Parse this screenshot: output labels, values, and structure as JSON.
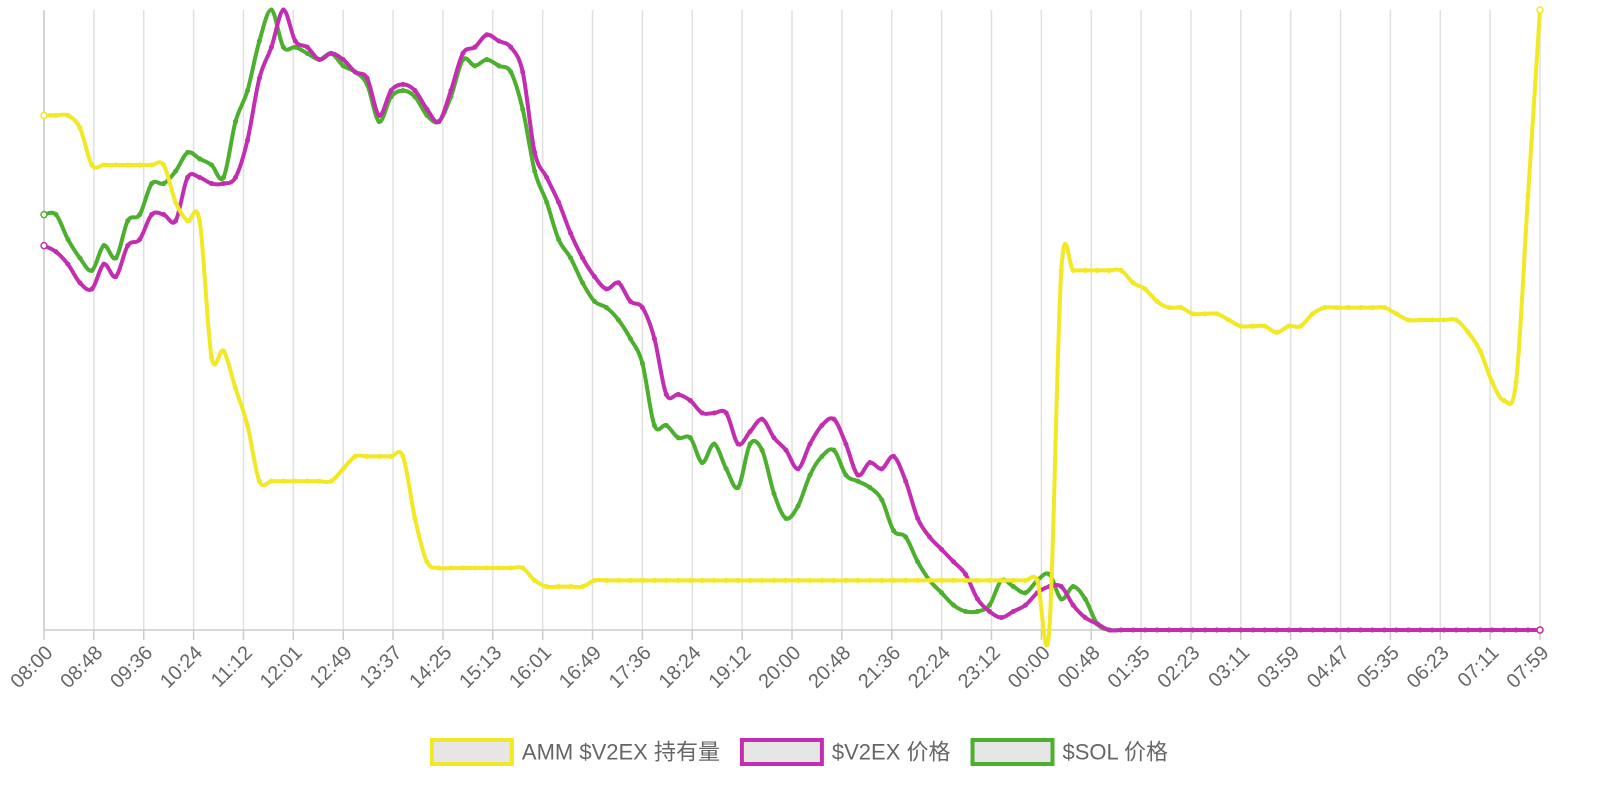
{
  "chart_data": {
    "type": "line",
    "title": "",
    "xlabel": "",
    "ylabel": "",
    "x_tick_labels": [
      "08:00",
      "08:48",
      "09:36",
      "10:24",
      "11:12",
      "12:01",
      "12:49",
      "13:37",
      "14:25",
      "15:13",
      "16:01",
      "16:49",
      "17:36",
      "18:24",
      "19:12",
      "20:00",
      "20:48",
      "21:36",
      "22:24",
      "23:12",
      "00:00",
      "00:48",
      "01:35",
      "02:23",
      "03:11",
      "03:59",
      "04:47",
      "05:35",
      "06:23",
      "07:11",
      "07:59"
    ],
    "y_axis_visible": false,
    "ylim": [
      0,
      100
    ],
    "grid": {
      "vertical": true,
      "horizontal": false
    },
    "legend_position": "bottom",
    "note": "Y axis shows no tick labels; series values are estimated on a normalized 0-100 scale (0 = bottom of plot, 100 = top).",
    "series": [
      {
        "name": "AMM $V2EX 持有量",
        "color": "#f2e824",
        "values": [
          83,
          83,
          83,
          81,
          75,
          75,
          75,
          75,
          75,
          75,
          75,
          69,
          66,
          66,
          44,
          45,
          39,
          33,
          24,
          24,
          24,
          24,
          24,
          24,
          24,
          26,
          28,
          28,
          28,
          28,
          28,
          18,
          11,
          10,
          10,
          10,
          10,
          10,
          10,
          10,
          10,
          8,
          7,
          7,
          7,
          7,
          8,
          8,
          8,
          8,
          8,
          8,
          8,
          8,
          8,
          8,
          8,
          8,
          8,
          8,
          8,
          8,
          8,
          8,
          8,
          8,
          8,
          8,
          8,
          8,
          8,
          8,
          8,
          8,
          8,
          8,
          8,
          8,
          8,
          8,
          8,
          8,
          8,
          8,
          0,
          58,
          58,
          58,
          58,
          58,
          58,
          56,
          55,
          53,
          52,
          52,
          51,
          51,
          51,
          50,
          49,
          49,
          49,
          48,
          49,
          49,
          51,
          52,
          52,
          52,
          52,
          52,
          52,
          51,
          50,
          50,
          50,
          50,
          50,
          48,
          45,
          40,
          37,
          40,
          70,
          100
        ]
      },
      {
        "name": "$V2EX 价格",
        "color": "#c32eb1",
        "values": [
          62,
          61,
          59,
          56,
          55,
          59,
          57,
          62,
          63,
          67,
          67,
          66,
          73,
          73,
          72,
          72,
          73,
          79,
          89,
          94,
          100,
          95,
          94,
          92,
          93,
          92,
          90,
          89,
          83,
          87,
          88,
          87,
          84,
          82,
          87,
          93,
          94,
          96,
          95,
          94,
          90,
          77,
          73,
          69,
          64,
          60,
          57,
          55,
          56,
          53,
          52,
          47,
          38,
          38,
          37,
          35,
          35,
          35,
          30,
          32,
          34,
          31,
          29,
          26,
          30,
          33,
          34,
          30,
          25,
          27,
          26,
          28,
          24,
          18,
          15,
          13,
          11,
          9,
          5,
          3,
          2,
          3,
          4,
          6,
          7,
          7,
          4,
          2,
          1,
          0,
          0,
          0,
          0,
          0,
          0,
          0,
          0,
          0,
          0,
          0,
          0,
          0,
          0,
          0,
          0,
          0,
          0,
          0,
          0,
          0,
          0,
          0,
          0,
          0,
          0,
          0,
          0,
          0,
          0,
          0,
          0,
          0,
          0,
          0,
          0,
          0
        ]
      },
      {
        "name": "$SOL 价格",
        "color": "#4caf2e",
        "values": [
          67,
          67,
          63,
          60,
          58,
          62,
          60,
          66,
          67,
          72,
          72,
          74,
          77,
          76,
          75,
          73,
          82,
          87,
          95,
          100,
          94,
          94,
          93,
          92,
          93,
          91,
          90,
          88,
          82,
          86,
          87,
          86,
          83,
          82,
          86,
          92,
          91,
          92,
          91,
          90,
          84,
          74,
          69,
          63,
          60,
          56,
          53,
          52,
          50,
          47,
          43,
          33,
          33,
          31,
          31,
          27,
          30,
          26,
          23,
          30,
          29,
          22,
          18,
          20,
          25,
          28,
          29,
          25,
          24,
          23,
          21,
          16,
          15,
          11,
          8,
          6,
          4,
          3,
          3,
          4,
          8,
          7,
          6,
          8,
          9,
          5,
          7,
          5,
          1,
          0,
          0,
          0,
          0,
          0,
          0,
          0,
          0,
          0,
          0,
          0,
          0,
          0,
          0,
          0,
          0,
          0,
          0,
          0,
          0,
          0,
          0,
          0,
          0,
          0,
          0,
          0,
          0,
          0,
          0,
          0,
          0,
          0,
          0,
          0,
          0,
          0
        ]
      }
    ]
  }
}
